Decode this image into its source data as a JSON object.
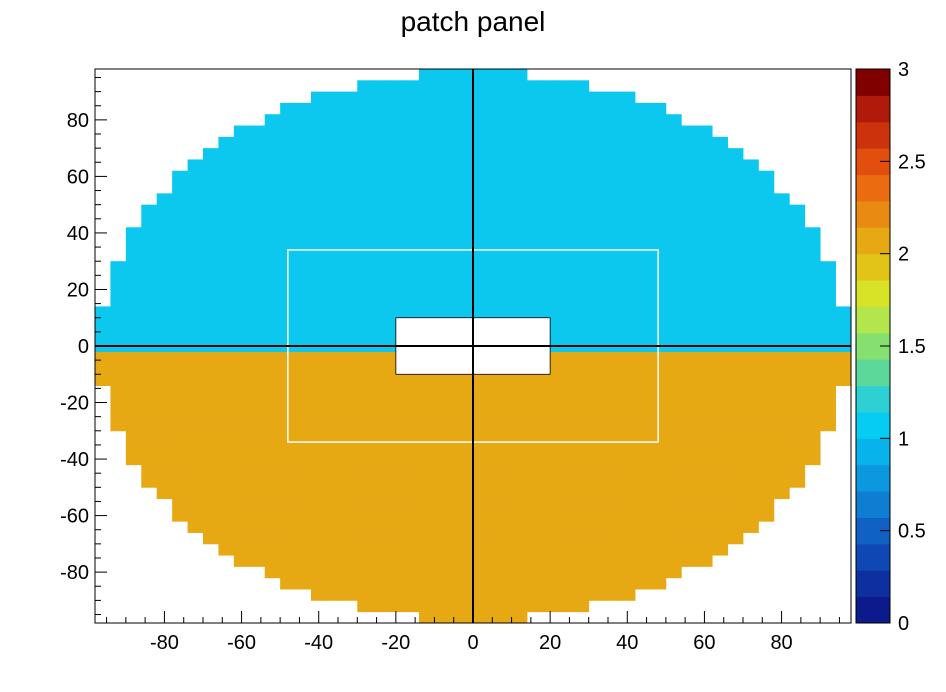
{
  "chart_data": {
    "type": "heatmap",
    "title": "patch panel",
    "xlabel": "",
    "ylabel": "",
    "xlim": [
      -98,
      98
    ],
    "ylim": [
      -98,
      98
    ],
    "cell_size": 4,
    "x_ticks": [
      -80,
      -60,
      -40,
      -20,
      0,
      20,
      40,
      60,
      80
    ],
    "y_ticks": [
      -80,
      -60,
      -40,
      -20,
      0,
      20,
      40,
      60,
      80
    ],
    "z_range": [
      0,
      3
    ],
    "colorbar_ticks": [
      "0",
      "0.5",
      "1",
      "1.5",
      "2",
      "2.5",
      "3"
    ],
    "outer_radius": 97,
    "value_upper_region": 1,
    "value_lower_region": 2,
    "boundary_y": -2,
    "empty_region": {
      "x": [
        -20,
        20
      ],
      "y": [
        -10,
        10
      ]
    },
    "inner_frame": {
      "x": [
        -48,
        48
      ],
      "y": [
        -34,
        34
      ]
    },
    "grid": false,
    "colors": {
      "value_1": "#0cc8ee",
      "value_2": "#e6a914",
      "palette": [
        "#0d1a8c",
        "#0d2fa0",
        "#0f48b4",
        "#0f62c4",
        "#0e7dd2",
        "#0b98de",
        "#07b3ea",
        "#06cbf2",
        "#2fd0d4",
        "#5cd89a",
        "#86e070",
        "#b3e64c",
        "#d8e226",
        "#e2c318",
        "#e6a914",
        "#e98a12",
        "#eb6c10",
        "#e24e0e",
        "#cc320c",
        "#b01a0a",
        "#800000"
      ]
    }
  }
}
